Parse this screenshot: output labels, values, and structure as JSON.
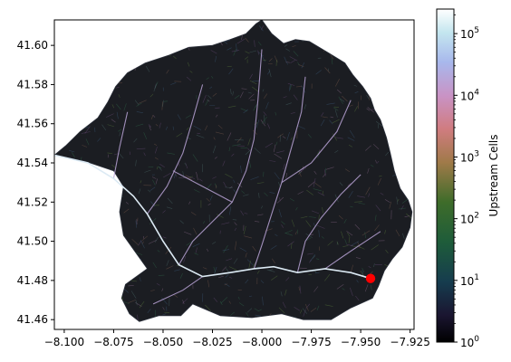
{
  "chart_data": {
    "type": "heatmap",
    "title": "",
    "xlabel": "",
    "ylabel": "",
    "xlim": [
      -8.105,
      -7.923
    ],
    "ylim": [
      41.455,
      41.613
    ],
    "x_ticks": [
      {
        "value": -8.1,
        "label": "−8.100"
      },
      {
        "value": -8.075,
        "label": "−8.075"
      },
      {
        "value": -8.05,
        "label": "−8.050"
      },
      {
        "value": -8.025,
        "label": "−8.025"
      },
      {
        "value": -8.0,
        "label": "−8.000"
      },
      {
        "value": -7.975,
        "label": "−7.975"
      },
      {
        "value": -7.95,
        "label": "−7.950"
      },
      {
        "value": -7.925,
        "label": "−7.925"
      }
    ],
    "y_ticks": [
      {
        "value": 41.46,
        "label": "41.46"
      },
      {
        "value": 41.48,
        "label": "41.48"
      },
      {
        "value": 41.5,
        "label": "41.50"
      },
      {
        "value": 41.52,
        "label": "41.52"
      },
      {
        "value": 41.54,
        "label": "41.54"
      },
      {
        "value": 41.56,
        "label": "41.56"
      },
      {
        "value": 41.58,
        "label": "41.58"
      },
      {
        "value": 41.6,
        "label": "41.60"
      }
    ],
    "colorbar": {
      "label": "Upstream Cells",
      "scale": "log",
      "colormap": "cubehelix",
      "range": [
        1,
        250000
      ],
      "ticks": [
        {
          "base": "10",
          "exp": "0",
          "value": 1
        },
        {
          "base": "10",
          "exp": "1",
          "value": 10
        },
        {
          "base": "10",
          "exp": "2",
          "value": 100
        },
        {
          "base": "10",
          "exp": "3",
          "value": 1000
        },
        {
          "base": "10",
          "exp": "4",
          "value": 10000
        },
        {
          "base": "10",
          "exp": "5",
          "value": 100000
        }
      ]
    },
    "basin_outline": [
      [
        -8.105,
        41.544
      ],
      [
        -8.09,
        41.541
      ],
      [
        -8.075,
        41.536
      ],
      [
        -8.07,
        41.528
      ],
      [
        -8.072,
        41.515
      ],
      [
        -8.07,
        41.503
      ],
      [
        -8.063,
        41.493
      ],
      [
        -8.058,
        41.486
      ],
      [
        -8.069,
        41.478
      ],
      [
        -8.071,
        41.471
      ],
      [
        -8.067,
        41.463
      ],
      [
        -8.062,
        41.459
      ],
      [
        -8.052,
        41.462
      ],
      [
        -8.041,
        41.462
      ],
      [
        -8.035,
        41.468
      ],
      [
        -8.021,
        41.462
      ],
      [
        -8.005,
        41.461
      ],
      [
        -7.99,
        41.463
      ],
      [
        -7.979,
        41.46
      ],
      [
        -7.965,
        41.46
      ],
      [
        -7.955,
        41.466
      ],
      [
        -7.944,
        41.471
      ],
      [
        -7.941,
        41.477
      ],
      [
        -7.938,
        41.485
      ],
      [
        -7.934,
        41.491
      ],
      [
        -7.929,
        41.497
      ],
      [
        -7.925,
        41.507
      ],
      [
        -7.924,
        41.515
      ],
      [
        -7.926,
        41.521
      ],
      [
        -7.93,
        41.527
      ],
      [
        -7.933,
        41.536
      ],
      [
        -7.935,
        41.545
      ],
      [
        -7.937,
        41.553
      ],
      [
        -7.94,
        41.562
      ],
      [
        -7.943,
        41.567
      ],
      [
        -7.945,
        41.573
      ],
      [
        -7.949,
        41.579
      ],
      [
        -7.954,
        41.585
      ],
      [
        -7.958,
        41.591
      ],
      [
        -7.966,
        41.596
      ],
      [
        -7.976,
        41.602
      ],
      [
        -7.983,
        41.603
      ],
      [
        -7.989,
        41.601
      ],
      [
        -7.995,
        41.606
      ],
      [
        -8.0,
        41.613
      ],
      [
        -8.003,
        41.611
      ],
      [
        -8.008,
        41.606
      ],
      [
        -8.016,
        41.603
      ],
      [
        -8.025,
        41.6
      ],
      [
        -8.037,
        41.599
      ],
      [
        -8.047,
        41.595
      ],
      [
        -8.059,
        41.591
      ],
      [
        -8.068,
        41.586
      ],
      [
        -8.074,
        41.579
      ],
      [
        -8.078,
        41.571
      ],
      [
        -8.083,
        41.563
      ],
      [
        -8.092,
        41.556
      ],
      [
        -8.099,
        41.549
      ],
      [
        -8.105,
        41.544
      ]
    ],
    "main_channel": [
      [
        -7.945,
        41.481
      ],
      [
        -7.955,
        41.484
      ],
      [
        -7.968,
        41.486
      ],
      [
        -7.982,
        41.484
      ],
      [
        -7.994,
        41.487
      ],
      [
        -8.004,
        41.486
      ],
      [
        -8.016,
        41.484
      ],
      [
        -8.03,
        41.482
      ],
      [
        -8.042,
        41.488
      ],
      [
        -8.05,
        41.5
      ],
      [
        -8.058,
        41.514
      ],
      [
        -8.065,
        41.523
      ],
      [
        -8.075,
        41.532
      ],
      [
        -8.088,
        41.54
      ],
      [
        -8.105,
        41.544
      ]
    ],
    "tributaries": [
      [
        [
          -7.982,
          41.484
        ],
        [
          -7.978,
          41.5
        ],
        [
          -7.97,
          41.512
        ],
        [
          -7.96,
          41.524
        ],
        [
          -7.95,
          41.534
        ]
      ],
      [
        [
          -8.004,
          41.486
        ],
        [
          -8.0,
          41.498
        ],
        [
          -7.995,
          41.514
        ],
        [
          -7.99,
          41.53
        ],
        [
          -7.985,
          41.548
        ],
        [
          -7.98,
          41.566
        ],
        [
          -7.978,
          41.584
        ]
      ],
      [
        [
          -8.042,
          41.488
        ],
        [
          -8.035,
          41.5
        ],
        [
          -8.025,
          41.51
        ],
        [
          -8.015,
          41.52
        ],
        [
          -8.008,
          41.536
        ],
        [
          -8.004,
          41.552
        ],
        [
          -8.002,
          41.572
        ],
        [
          -8.0,
          41.598
        ]
      ],
      [
        [
          -8.058,
          41.514
        ],
        [
          -8.048,
          41.528
        ],
        [
          -8.04,
          41.545
        ],
        [
          -8.035,
          41.562
        ],
        [
          -8.03,
          41.58
        ]
      ],
      [
        [
          -8.075,
          41.532
        ],
        [
          -8.072,
          41.548
        ],
        [
          -8.068,
          41.566
        ]
      ],
      [
        [
          -8.03,
          41.482
        ],
        [
          -8.04,
          41.475
        ],
        [
          -8.055,
          41.468
        ]
      ],
      [
        [
          -7.968,
          41.486
        ],
        [
          -7.955,
          41.495
        ],
        [
          -7.94,
          41.505
        ]
      ],
      [
        [
          -8.015,
          41.52
        ],
        [
          -8.03,
          41.528
        ],
        [
          -8.045,
          41.536
        ]
      ],
      [
        [
          -7.99,
          41.53
        ],
        [
          -7.975,
          41.54
        ],
        [
          -7.962,
          41.556
        ],
        [
          -7.955,
          41.572
        ]
      ]
    ],
    "outlet_point": {
      "x": -7.945,
      "y": 41.481,
      "color": "#ff0000"
    }
  }
}
